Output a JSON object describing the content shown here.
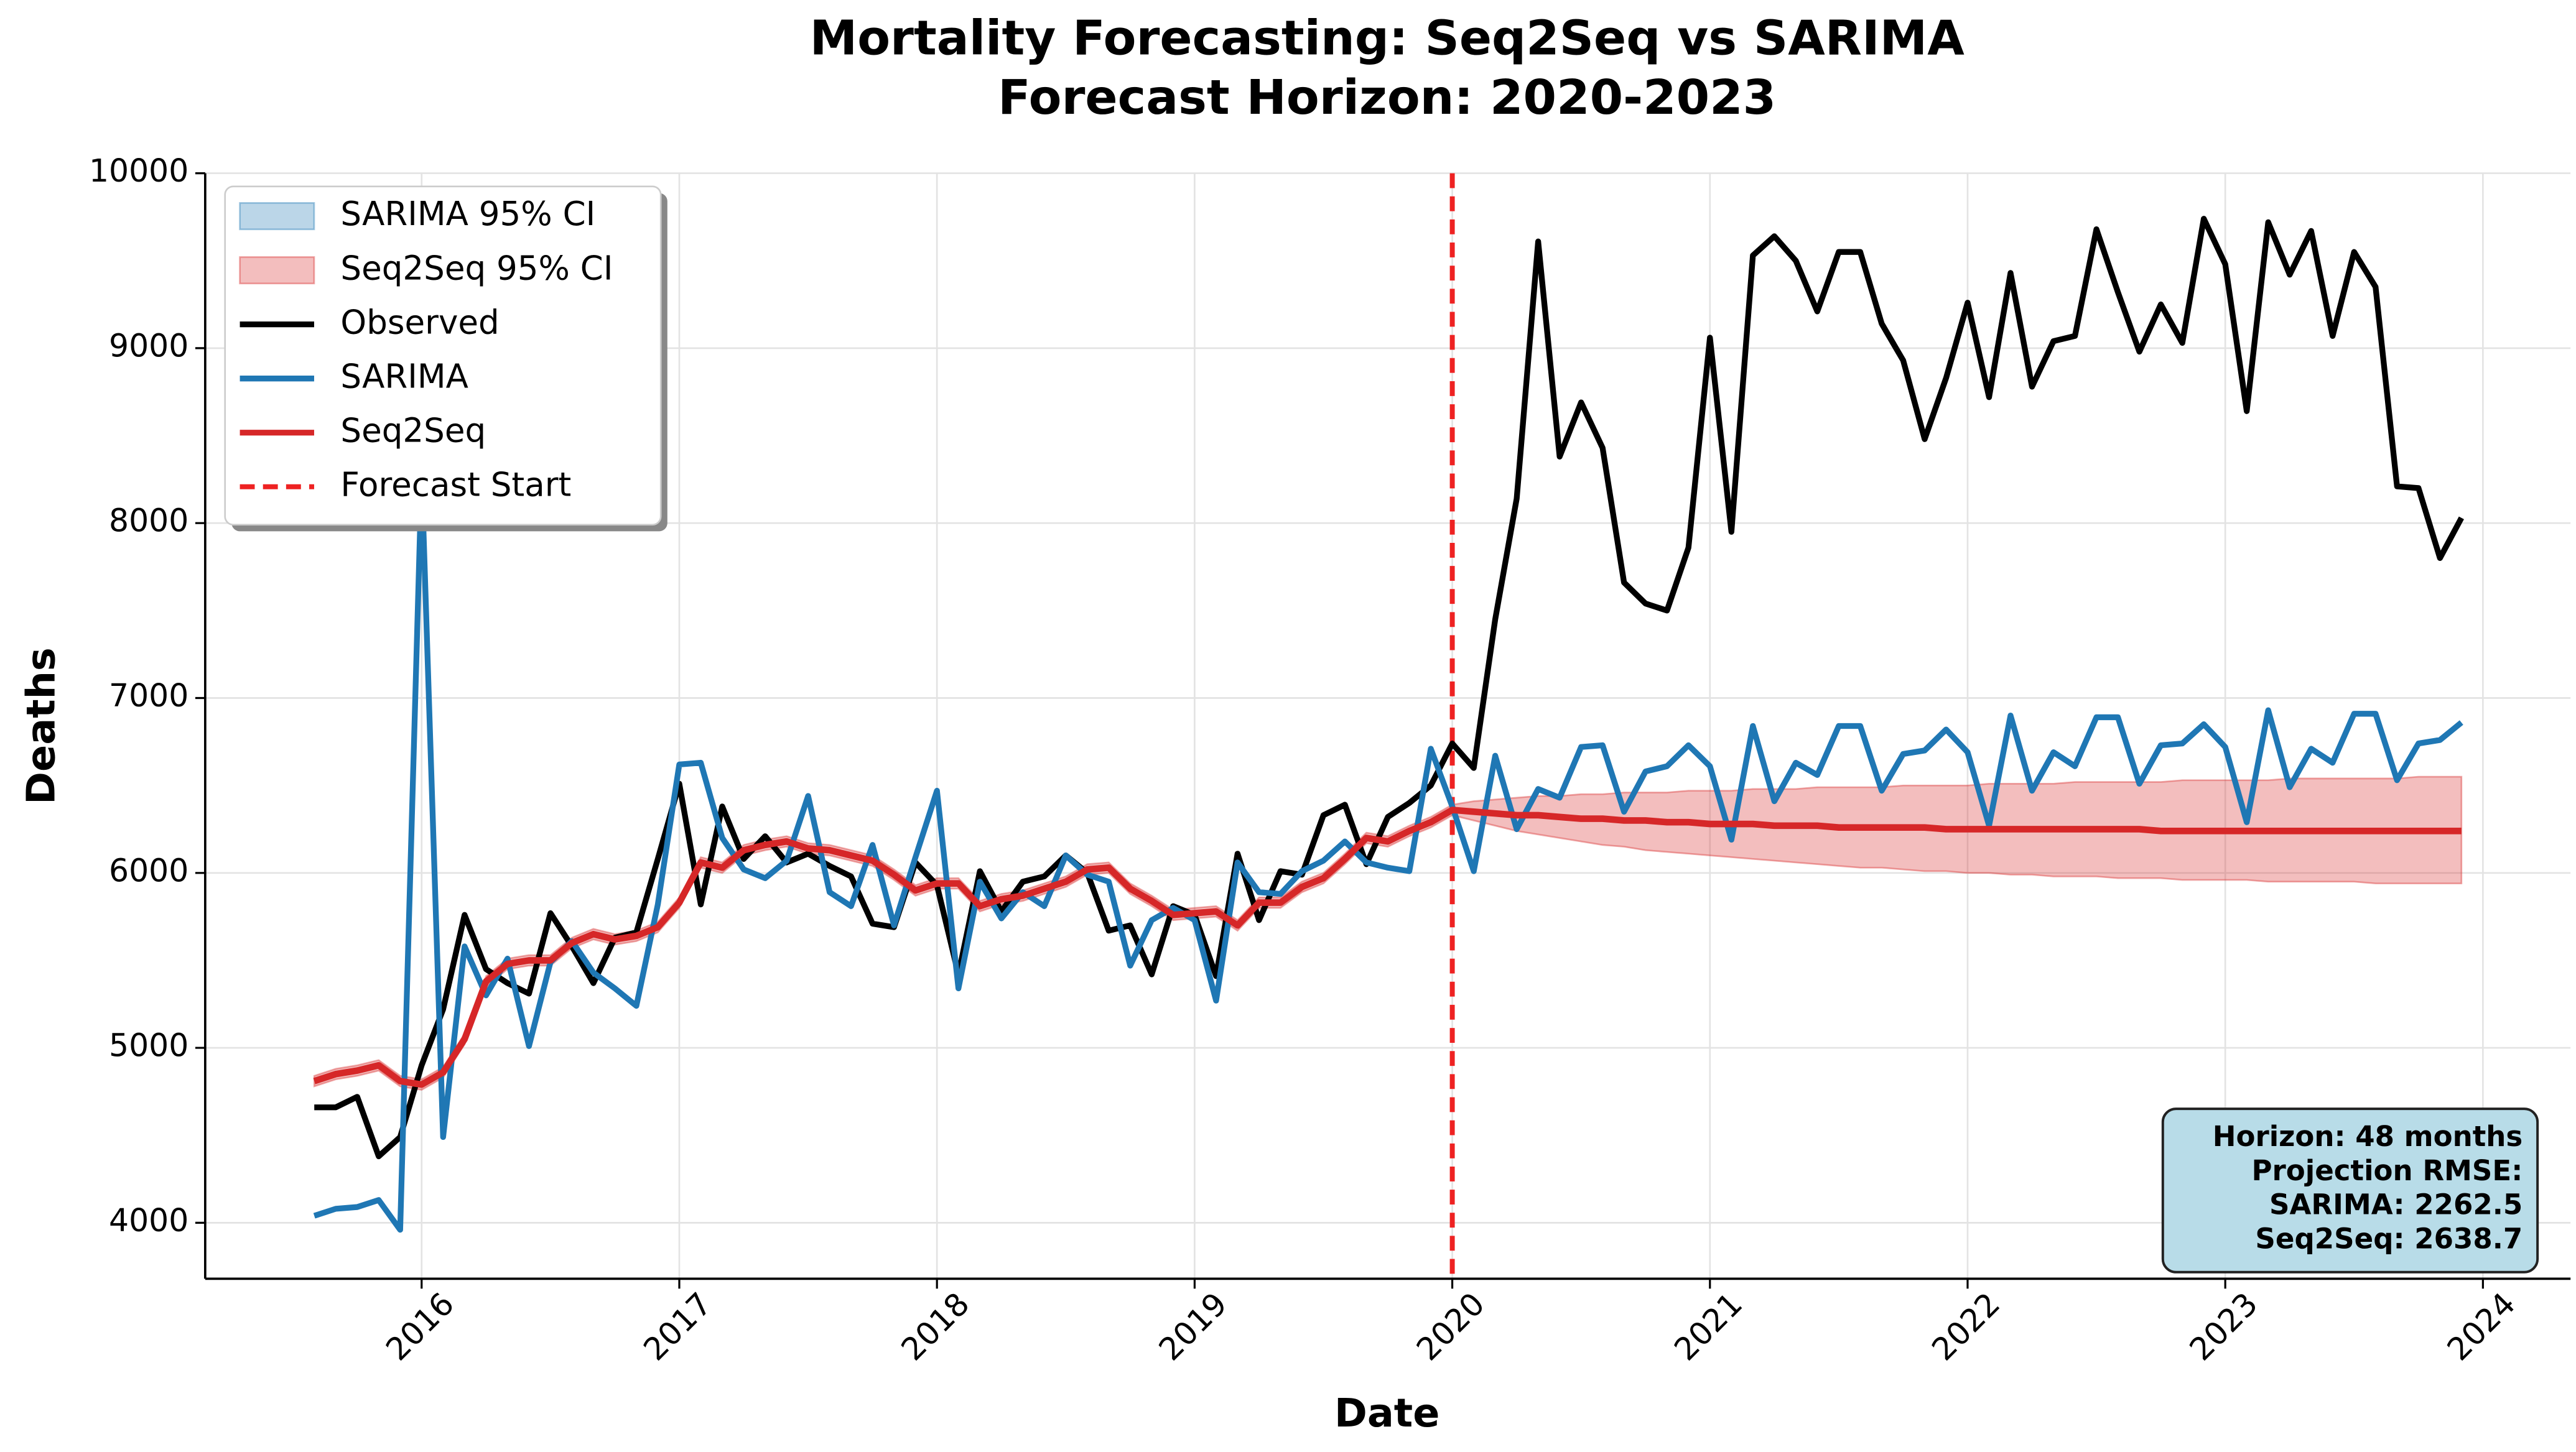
{
  "chart_data": {
    "type": "line",
    "title": [
      "Mortality Forecasting: Seq2Seq vs SARIMA",
      "Forecast Horizon: 2020-2023"
    ],
    "xlabel": "Date",
    "ylabel": "Deaths",
    "x": [
      "2015-08",
      "2015-09",
      "2015-10",
      "2015-11",
      "2015-12",
      "2016-01",
      "2016-02",
      "2016-03",
      "2016-04",
      "2016-05",
      "2016-06",
      "2016-07",
      "2016-08",
      "2016-09",
      "2016-10",
      "2016-11",
      "2016-12",
      "2017-01",
      "2017-02",
      "2017-03",
      "2017-04",
      "2017-05",
      "2017-06",
      "2017-07",
      "2017-08",
      "2017-09",
      "2017-10",
      "2017-11",
      "2017-12",
      "2018-01",
      "2018-02",
      "2018-03",
      "2018-04",
      "2018-05",
      "2018-06",
      "2018-07",
      "2018-08",
      "2018-09",
      "2018-10",
      "2018-11",
      "2018-12",
      "2019-01",
      "2019-02",
      "2019-03",
      "2019-04",
      "2019-05",
      "2019-06",
      "2019-07",
      "2019-08",
      "2019-09",
      "2019-10",
      "2019-11",
      "2019-12",
      "2020-01",
      "2020-02",
      "2020-03",
      "2020-04",
      "2020-05",
      "2020-06",
      "2020-07",
      "2020-08",
      "2020-09",
      "2020-10",
      "2020-11",
      "2020-12",
      "2021-01",
      "2021-02",
      "2021-03",
      "2021-04",
      "2021-05",
      "2021-06",
      "2021-07",
      "2021-08",
      "2021-09",
      "2021-10",
      "2021-11",
      "2021-12",
      "2022-01",
      "2022-02",
      "2022-03",
      "2022-04",
      "2022-05",
      "2022-06",
      "2022-07",
      "2022-08",
      "2022-09",
      "2022-10",
      "2022-11",
      "2022-12",
      "2023-01",
      "2023-02",
      "2023-03",
      "2023-04",
      "2023-05",
      "2023-06",
      "2023-07",
      "2023-08",
      "2023-09",
      "2023-10",
      "2023-11",
      "2023-12"
    ],
    "bands": [
      {
        "name": "SARIMA 95% CI",
        "color": "#1f77b4"
      },
      {
        "name": "Seq2Seq 95% CI",
        "color": "#d62728",
        "upper": [
          4840,
          4880,
          4900,
          4930,
          4840,
          4820,
          4890,
          5080,
          5410,
          5510,
          5530,
          5530,
          5630,
          5680,
          5650,
          5670,
          5720,
          5860,
          6090,
          6060,
          6160,
          6190,
          6210,
          6170,
          6160,
          6130,
          6100,
          6020,
          5930,
          5970,
          5970,
          5840,
          5880,
          5900,
          5940,
          5980,
          6050,
          6060,
          5940,
          5870,
          5790,
          5800,
          5810,
          5730,
          5860,
          5860,
          5950,
          6000,
          6110,
          6230,
          6210,
          6270,
          6320,
          6390,
          6410,
          6420,
          6430,
          6440,
          6440,
          6450,
          6450,
          6460,
          6460,
          6460,
          6470,
          6470,
          6470,
          6480,
          6480,
          6480,
          6490,
          6490,
          6490,
          6490,
          6500,
          6500,
          6500,
          6500,
          6510,
          6510,
          6510,
          6510,
          6520,
          6520,
          6520,
          6520,
          6520,
          6530,
          6530,
          6530,
          6530,
          6530,
          6540,
          6540,
          6540,
          6540,
          6540,
          6540,
          6550,
          6550,
          6550
        ],
        "lower": [
          4780,
          4820,
          4840,
          4870,
          4780,
          4760,
          4830,
          5020,
          5350,
          5450,
          5470,
          5470,
          5570,
          5620,
          5590,
          5610,
          5660,
          5800,
          6030,
          6000,
          6100,
          6130,
          6150,
          6110,
          6100,
          6070,
          6040,
          5960,
          5870,
          5910,
          5910,
          5780,
          5820,
          5840,
          5880,
          5920,
          5990,
          6000,
          5880,
          5810,
          5730,
          5740,
          5750,
          5670,
          5800,
          5800,
          5890,
          5940,
          6050,
          6170,
          6150,
          6210,
          6260,
          6330,
          6300,
          6270,
          6240,
          6220,
          6200,
          6180,
          6160,
          6150,
          6130,
          6120,
          6110,
          6100,
          6090,
          6080,
          6070,
          6060,
          6050,
          6040,
          6030,
          6030,
          6020,
          6010,
          6010,
          6000,
          6000,
          5990,
          5990,
          5980,
          5980,
          5980,
          5970,
          5970,
          5970,
          5960,
          5960,
          5960,
          5960,
          5950,
          5950,
          5950,
          5950,
          5950,
          5940,
          5940,
          5940,
          5940,
          5940
        ]
      }
    ],
    "series": [
      {
        "name": "Observed",
        "color": "#000000",
        "values": [
          4660,
          4660,
          4720,
          4380,
          4490,
          4900,
          5220,
          5760,
          5450,
          5370,
          5310,
          5770,
          5580,
          5370,
          5630,
          5660,
          6080,
          6510,
          5820,
          6380,
          6080,
          6210,
          6060,
          6110,
          6040,
          5980,
          5710,
          5690,
          6060,
          5930,
          5420,
          6010,
          5780,
          5950,
          5980,
          6100,
          6000,
          5670,
          5700,
          5420,
          5810,
          5760,
          5410,
          6110,
          5730,
          6010,
          5990,
          6330,
          6390,
          6050,
          6320,
          6400,
          6500,
          6740,
          6600,
          7450,
          8140,
          9610,
          8380,
          8690,
          8430,
          7660,
          7540,
          7500,
          7860,
          9060,
          7950,
          9530,
          9640,
          9500,
          9210,
          9550,
          9550,
          9140,
          8930,
          8480,
          8830,
          9260,
          8720,
          9430,
          8780,
          9040,
          9070,
          9680,
          9320,
          8980,
          9250,
          9030,
          9740,
          9480,
          8640,
          9720,
          9420,
          9670,
          9070,
          9550,
          9350,
          8210,
          8200,
          7800,
          8030
        ]
      },
      {
        "name": "SARIMA",
        "color": "#1f77b4",
        "values": [
          4040,
          4080,
          4090,
          4130,
          3960,
          8280,
          4490,
          5580,
          5300,
          5510,
          5010,
          5490,
          5610,
          5430,
          5340,
          5240,
          5820,
          6620,
          6630,
          6200,
          6020,
          5970,
          6070,
          6440,
          5890,
          5810,
          6160,
          5700,
          6090,
          6470,
          5340,
          5950,
          5740,
          5890,
          5810,
          6100,
          5990,
          5950,
          5470,
          5730,
          5800,
          5730,
          5270,
          6060,
          5890,
          5880,
          6010,
          6070,
          6180,
          6060,
          6030,
          6010,
          6710,
          6380,
          6010,
          6670,
          6250,
          6480,
          6430,
          6720,
          6730,
          6350,
          6580,
          6610,
          6730,
          6610,
          6190,
          6840,
          6410,
          6630,
          6560,
          6840,
          6840,
          6470,
          6680,
          6700,
          6820,
          6690,
          6270,
          6900,
          6470,
          6690,
          6610,
          6890,
          6890,
          6510,
          6730,
          6740,
          6850,
          6720,
          6290,
          6930,
          6490,
          6710,
          6630,
          6910,
          6910,
          6530,
          6740,
          6760,
          6860
        ]
      },
      {
        "name": "Seq2Seq",
        "color": "#d62728",
        "values": [
          4810,
          4850,
          4870,
          4900,
          4810,
          4790,
          4860,
          5050,
          5380,
          5480,
          5500,
          5500,
          5600,
          5650,
          5620,
          5640,
          5690,
          5830,
          6060,
          6030,
          6130,
          6160,
          6180,
          6140,
          6130,
          6100,
          6070,
          5990,
          5900,
          5940,
          5940,
          5810,
          5850,
          5870,
          5910,
          5950,
          6020,
          6030,
          5910,
          5840,
          5760,
          5770,
          5780,
          5700,
          5830,
          5830,
          5920,
          5970,
          6080,
          6200,
          6180,
          6240,
          6290,
          6360,
          6350,
          6340,
          6330,
          6330,
          6320,
          6310,
          6310,
          6300,
          6300,
          6290,
          6290,
          6280,
          6280,
          6280,
          6270,
          6270,
          6270,
          6260,
          6260,
          6260,
          6260,
          6260,
          6250,
          6250,
          6250,
          6250,
          6250,
          6250,
          6250,
          6250,
          6250,
          6250,
          6240,
          6240,
          6240,
          6240,
          6240,
          6240,
          6240,
          6240,
          6240,
          6240,
          6240,
          6240,
          6240,
          6240,
          6240
        ]
      }
    ],
    "forecast_start": {
      "x": "2020-01",
      "label": "Forecast Start",
      "color": "#ee2222"
    },
    "annotation": [
      "Horizon: 48 months",
      "Projection RMSE:",
      "SARIMA: 2262.5",
      "Seq2Seq: 2638.7"
    ],
    "xlim": [
      2015.16,
      2024.34
    ],
    "xticks": [
      2016,
      2017,
      2018,
      2019,
      2020,
      2021,
      2022,
      2023,
      2024
    ],
    "ylim": [
      3680,
      10000
    ],
    "yticks": [
      4000,
      5000,
      6000,
      7000,
      8000,
      9000,
      10000
    ],
    "grid": true,
    "legend": "upper-left"
  }
}
